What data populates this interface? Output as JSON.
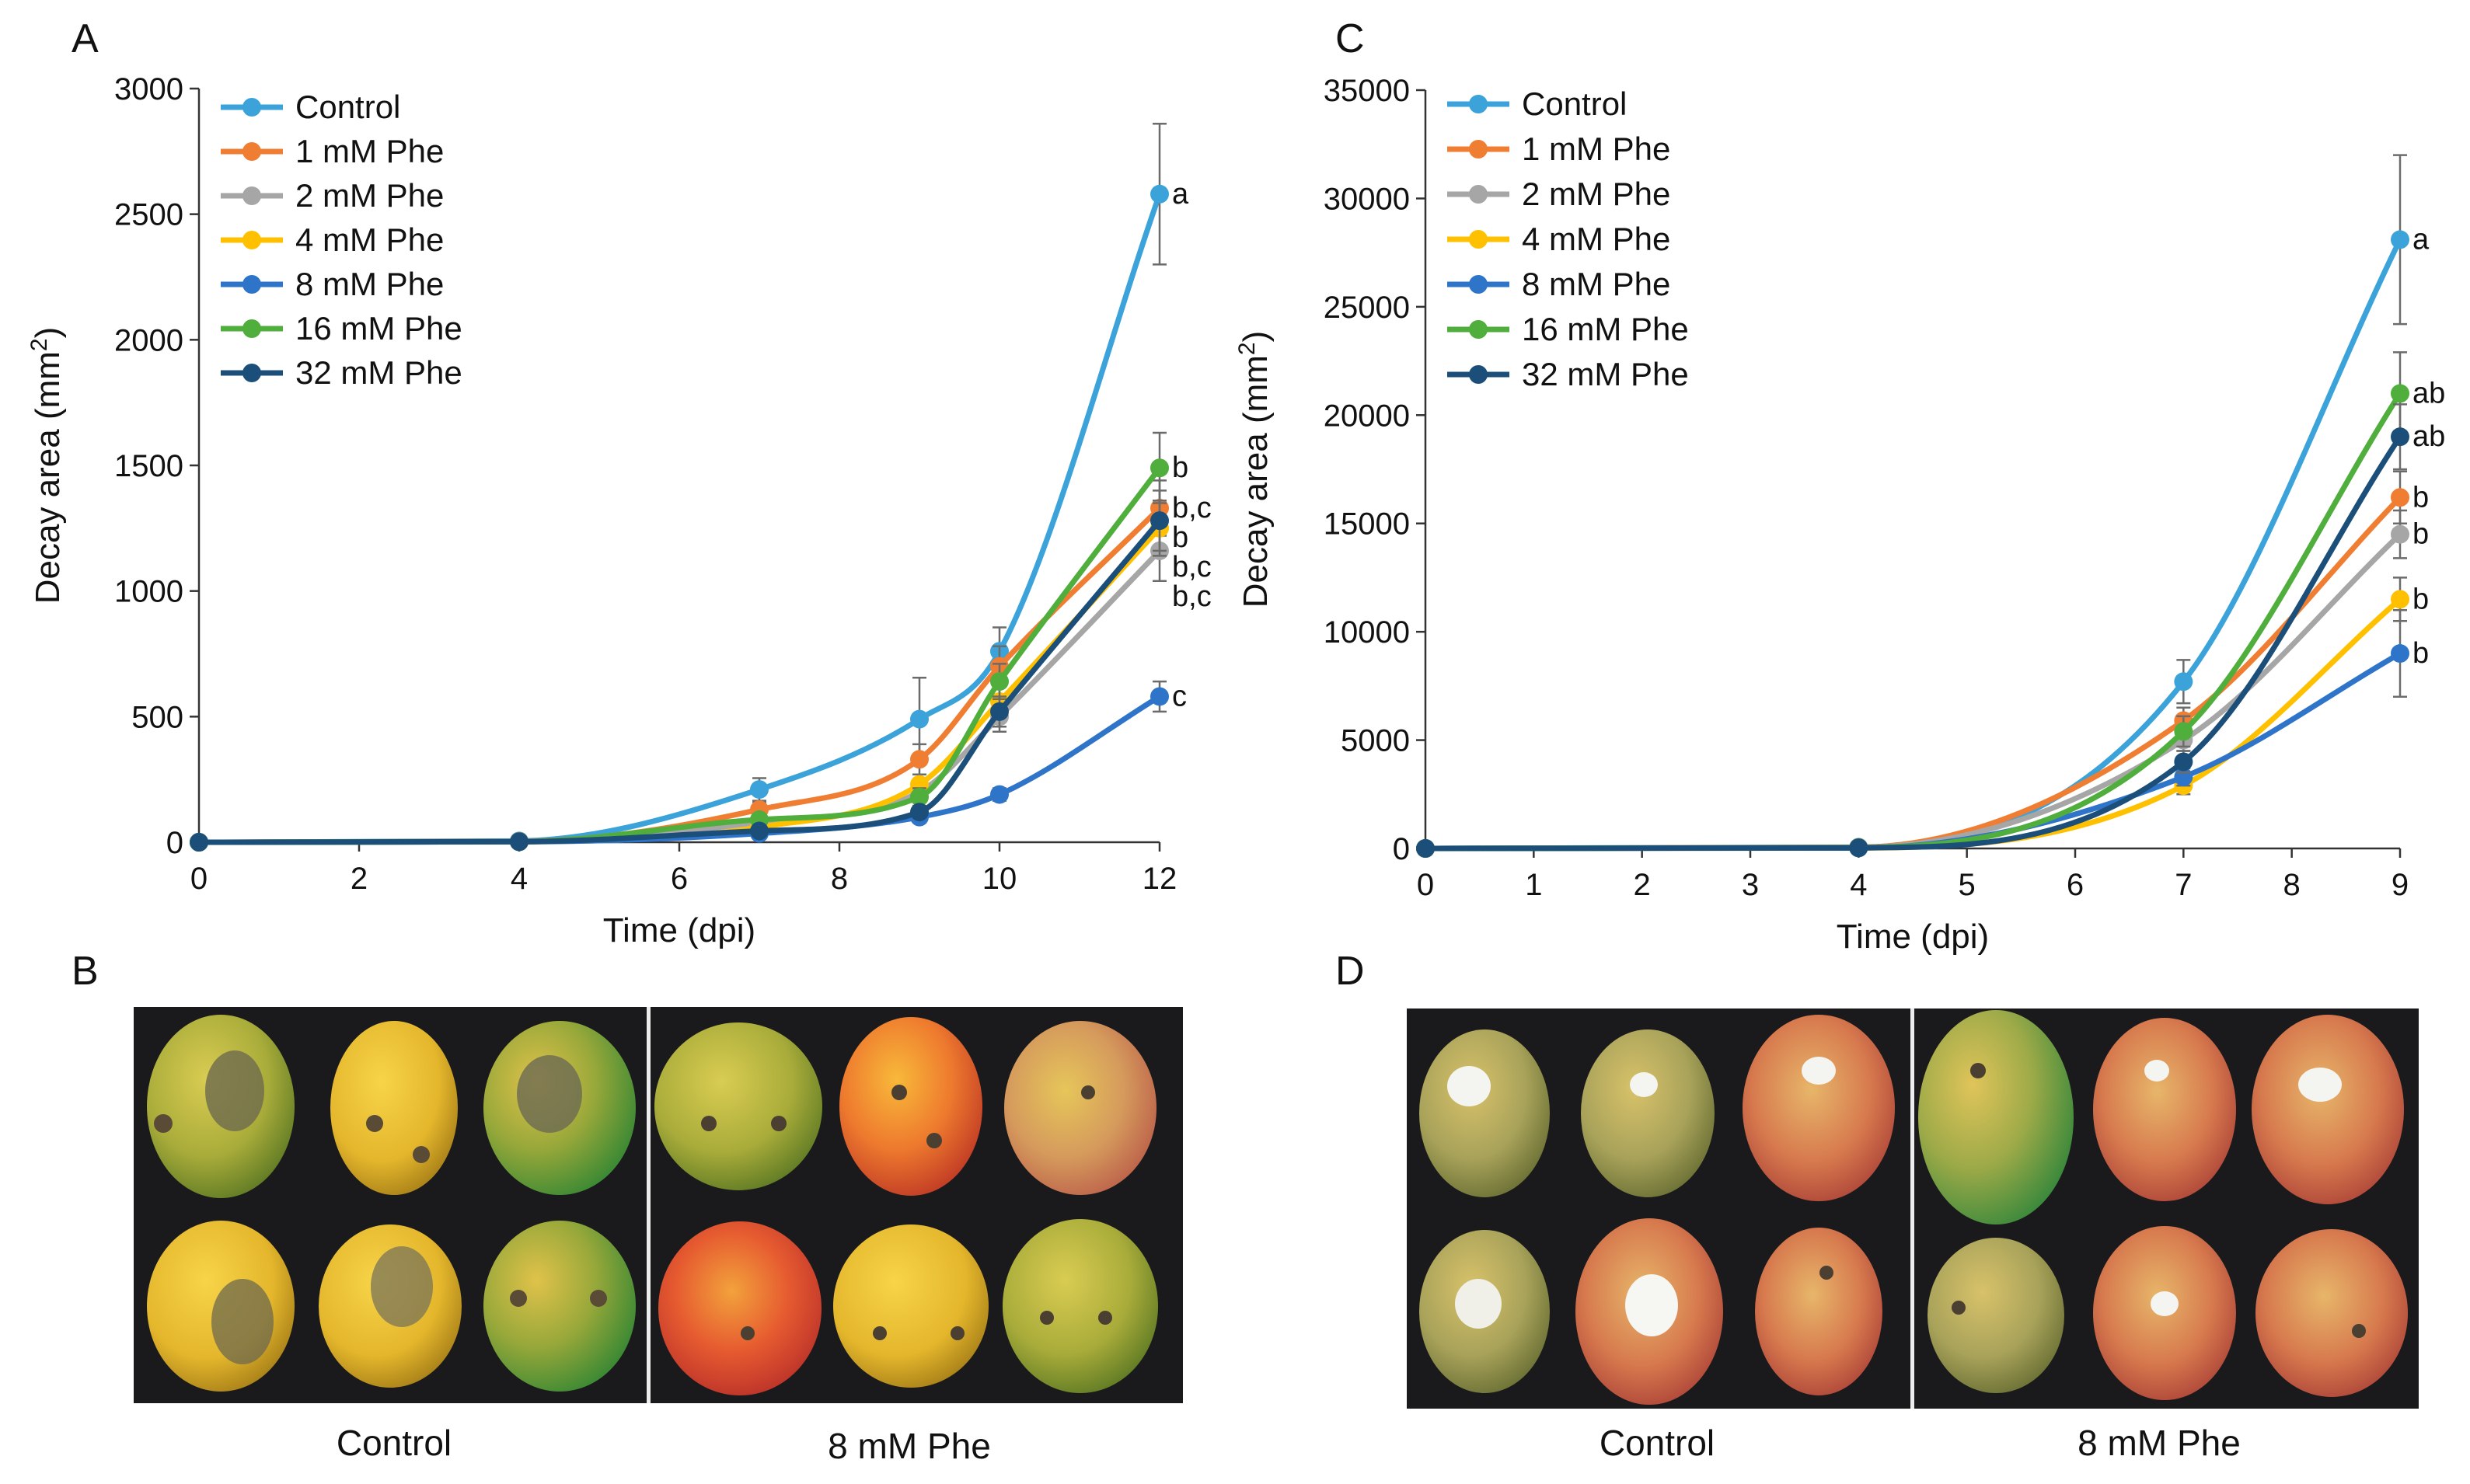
{
  "panels": {
    "A": "A",
    "B": "B",
    "C": "C",
    "D": "D"
  },
  "photo_captions": {
    "B_left": "Control",
    "B_right": "8 mM Phe",
    "D_left": "Control",
    "D_right": "8 mM Phe"
  },
  "colors": {
    "Control": "#3BA3D9",
    "1 mM Phe": "#F07E32",
    "2 mM Phe": "#A6A6A6",
    "4 mM Phe": "#FFC000",
    "8 mM Phe": "#2E74C9",
    "16 mM Phe": "#4FAE3C",
    "32 mM Phe": "#1B4F7A"
  },
  "chart_data": [
    {
      "id": "A",
      "type": "line",
      "title": "",
      "xlabel": "Time (dpi)",
      "ylabel": "Decay area (mm²)",
      "x": [
        0,
        4,
        7,
        9,
        10,
        12
      ],
      "xlim": [
        0,
        12
      ],
      "xticks": [
        0,
        2,
        4,
        6,
        8,
        10,
        12
      ],
      "ylim": [
        0,
        3000
      ],
      "yticks": [
        0,
        500,
        1000,
        1500,
        2000,
        2500,
        3000
      ],
      "legend_position": "top-left",
      "series": [
        {
          "name": "Control",
          "values": [
            0,
            5,
            210,
            490,
            760,
            2580
          ],
          "errors": [
            0,
            3,
            45,
            165,
            95,
            280
          ],
          "letter": "a"
        },
        {
          "name": "1 mM Phe",
          "values": [
            0,
            3,
            130,
            330,
            700,
            1330
          ],
          "errors": [
            0,
            2,
            30,
            60,
            80,
            110
          ],
          "letter": "b,c"
        },
        {
          "name": "2 mM Phe",
          "values": [
            0,
            2,
            80,
            200,
            500,
            1160
          ],
          "errors": [
            0,
            2,
            25,
            40,
            60,
            120
          ],
          "letter": "b,c"
        },
        {
          "name": "4 mM Phe",
          "values": [
            0,
            2,
            60,
            230,
            560,
            1250
          ],
          "errors": [
            0,
            2,
            20,
            40,
            60,
            110
          ],
          "letter": "b,c"
        },
        {
          "name": "8 mM Phe",
          "values": [
            0,
            2,
            35,
            100,
            190,
            580
          ],
          "errors": [
            0,
            1,
            10,
            20,
            25,
            60
          ],
          "letter": "c"
        },
        {
          "name": "16 mM Phe",
          "values": [
            0,
            2,
            90,
            180,
            640,
            1490
          ],
          "errors": [
            0,
            2,
            20,
            35,
            70,
            140
          ],
          "letter": "b"
        },
        {
          "name": "32 mM Phe",
          "values": [
            0,
            2,
            45,
            120,
            520,
            1280
          ],
          "errors": [
            0,
            1,
            12,
            25,
            60,
            120
          ],
          "letter": "b"
        }
      ]
    },
    {
      "id": "C",
      "type": "line",
      "title": "",
      "xlabel": "Time (dpi)",
      "ylabel": "Decay area (mm²)",
      "x": [
        0,
        4,
        7,
        9
      ],
      "xlim": [
        0,
        9
      ],
      "xticks": [
        0,
        1,
        2,
        3,
        4,
        5,
        6,
        7,
        8,
        9
      ],
      "ylim": [
        0,
        35000
      ],
      "yticks": [
        0,
        5000,
        10000,
        15000,
        20000,
        25000,
        30000,
        35000
      ],
      "legend_position": "top-left",
      "series": [
        {
          "name": "Control",
          "values": [
            0,
            60,
            7700,
            28100
          ],
          "errors": [
            0,
            40,
            1000,
            3900
          ],
          "letter": "a"
        },
        {
          "name": "1 mM Phe",
          "values": [
            0,
            50,
            5900,
            16200
          ],
          "errors": [
            0,
            30,
            600,
            1200
          ],
          "letter": "b"
        },
        {
          "name": "2 mM Phe",
          "values": [
            0,
            40,
            5000,
            14500
          ],
          "errors": [
            0,
            30,
            500,
            1100
          ],
          "letter": "b"
        },
        {
          "name": "4 mM Phe",
          "values": [
            0,
            20,
            2900,
            11500
          ],
          "errors": [
            0,
            20,
            400,
            1000
          ],
          "letter": "b"
        },
        {
          "name": "8 mM Phe",
          "values": [
            0,
            20,
            3300,
            9000
          ],
          "errors": [
            0,
            20,
            400,
            2000
          ],
          "letter": "b"
        },
        {
          "name": "16 mM Phe",
          "values": [
            0,
            40,
            5400,
            21000
          ],
          "errors": [
            0,
            30,
            700,
            1900
          ],
          "letter": "ab"
        },
        {
          "name": "32 mM Phe",
          "values": [
            0,
            30,
            4000,
            19000
          ],
          "errors": [
            0,
            20,
            500,
            1500
          ],
          "letter": "ab"
        }
      ]
    }
  ]
}
